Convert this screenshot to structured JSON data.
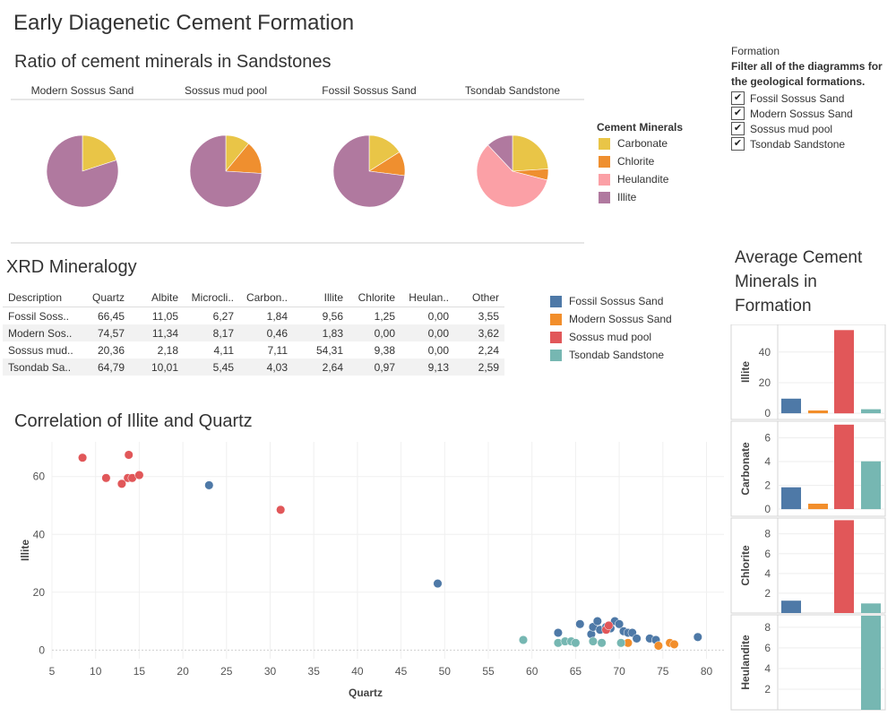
{
  "dashboard": {
    "title": "Early Diagenetic Cement Formation"
  },
  "colors": {
    "carbonate": "#e9c547",
    "chlorite": "#ef8f2f",
    "heulandite": "#fba0a6",
    "illite": "#b0799f",
    "fossil": "#4e79a7",
    "modern": "#f28e2b",
    "mudpool": "#e15759",
    "tsondab": "#76b7b2"
  },
  "pies": {
    "title": "Ratio of cement minerals in Sandstones",
    "minerals": [
      "Carbonate",
      "Chlorite",
      "Heulandite",
      "Illite"
    ],
    "legend_title": "Cement Minerals",
    "items": [
      {
        "name": "Modern Sossus Sand",
        "values": [
          0.2,
          0.0,
          0.0,
          0.8
        ]
      },
      {
        "name": "Sossus mud pool",
        "values": [
          0.11,
          0.15,
          0.0,
          0.74
        ]
      },
      {
        "name": "Fossil Sossus Sand",
        "values": [
          0.16,
          0.11,
          0.0,
          0.73
        ]
      },
      {
        "name": "Tsondab Sandstone",
        "values": [
          0.24,
          0.05,
          0.59,
          0.12
        ]
      }
    ]
  },
  "filter": {
    "title": "Formation",
    "description_line1": "Filter all of the diagramms for",
    "description_line2": "the geological formations.",
    "options": [
      {
        "label": "Fossil Sossus Sand",
        "checked": true,
        "mark": "✔"
      },
      {
        "label": "Modern Sossus Sand",
        "checked": true,
        "mark": "✔"
      },
      {
        "label": "Sossus mud pool",
        "checked": true,
        "mark": "✔"
      },
      {
        "label": "Tsondab Sandstone",
        "checked": true,
        "mark": "✔"
      }
    ]
  },
  "xrd": {
    "title": "XRD Mineralogy",
    "columns": [
      "Description",
      "Quartz",
      "Albite",
      "Microcli..",
      "Carbon..",
      "Illite",
      "Chlorite",
      "Heulan..",
      "Other"
    ],
    "rows": [
      [
        "Fossil Soss..",
        "66,45",
        "11,05",
        "6,27",
        "1,84",
        "9,56",
        "1,25",
        "0,00",
        "3,55"
      ],
      [
        "Modern Sos..",
        "74,57",
        "11,34",
        "8,17",
        "0,46",
        "1,83",
        "0,00",
        "0,00",
        "3,62"
      ],
      [
        "Sossus mud..",
        "20,36",
        "2,18",
        "4,11",
        "7,11",
        "54,31",
        "9,38",
        "0,00",
        "2,24"
      ],
      [
        "Tsondab Sa..",
        "64,79",
        "10,01",
        "5,45",
        "4,03",
        "2,64",
        "0,97",
        "9,13",
        "2,59"
      ]
    ],
    "legend": [
      "Fossil Sossus Sand",
      "Modern Sossus Sand",
      "Sossus mud pool",
      "Tsondab Sandstone"
    ]
  },
  "chart_data": [
    {
      "type": "scatter",
      "title": "Correlation of Illite and Quartz",
      "xlabel": "Quartz",
      "ylabel": "Illite",
      "xlim": [
        5,
        82
      ],
      "ylim": [
        -3,
        72
      ],
      "xticks": [
        5,
        10,
        15,
        20,
        25,
        30,
        35,
        40,
        45,
        50,
        55,
        60,
        65,
        70,
        75,
        80
      ],
      "yticks": [
        0,
        20,
        40,
        60
      ],
      "grid": true,
      "series": [
        {
          "name": "Fossil Sossus Sand",
          "points": [
            [
              23,
              57
            ],
            [
              49.2,
              23
            ],
            [
              63,
              6
            ],
            [
              65.5,
              9
            ],
            [
              66.8,
              5.5
            ],
            [
              67,
              8
            ],
            [
              67.5,
              10
            ],
            [
              67.8,
              7
            ],
            [
              68.5,
              8
            ],
            [
              69,
              7.5
            ],
            [
              69.5,
              10
            ],
            [
              70,
              9
            ],
            [
              70.5,
              6.5
            ],
            [
              71,
              6
            ],
            [
              71.5,
              6
            ],
            [
              72,
              4
            ],
            [
              73.5,
              4
            ],
            [
              74.2,
              3.5
            ],
            [
              79,
              4.5
            ]
          ]
        },
        {
          "name": "Modern Sossus Sand",
          "points": [
            [
              71,
              2.5
            ],
            [
              74.5,
              1.5
            ],
            [
              75.8,
              2.5
            ],
            [
              76.3,
              2
            ]
          ]
        },
        {
          "name": "Sossus mud pool",
          "points": [
            [
              8.5,
              66.5
            ],
            [
              11.2,
              59.5
            ],
            [
              13,
              57.5
            ],
            [
              13.7,
              59.5
            ],
            [
              13.8,
              67.5
            ],
            [
              14.2,
              59.5
            ],
            [
              15,
              60.5
            ],
            [
              31.2,
              48.5
            ],
            [
              68.5,
              7
            ],
            [
              68.8,
              8.5
            ]
          ]
        },
        {
          "name": "Tsondab Sandstone",
          "points": [
            [
              59,
              3.5
            ],
            [
              63,
              2.5
            ],
            [
              63.8,
              3
            ],
            [
              64.5,
              3
            ],
            [
              65,
              2.5
            ],
            [
              67,
              3
            ],
            [
              68,
              2.5
            ],
            [
              70.2,
              2.5
            ]
          ]
        }
      ]
    },
    {
      "type": "bar",
      "title": "Average Cement Minerals in Formation",
      "categories": [
        "Fossil Sossus Sand",
        "Modern Sossus Sand",
        "Sossus mud pool",
        "Tsondab Sandstone"
      ],
      "panels": [
        {
          "ylabel": "Illite",
          "ylim": [
            -4,
            58
          ],
          "ticks": [
            0,
            20,
            40
          ],
          "values": [
            9.56,
            1.83,
            54.31,
            2.64
          ]
        },
        {
          "ylabel": "Carbonate",
          "ylim": [
            -0.6,
            7.4
          ],
          "ticks": [
            0,
            2,
            4,
            6
          ],
          "values": [
            1.84,
            0.46,
            7.11,
            4.03
          ]
        },
        {
          "ylabel": "Chlorite",
          "ylim": [
            0,
            9.6
          ],
          "ticks": [
            2,
            4,
            6,
            8
          ],
          "values": [
            1.25,
            0.0,
            9.38,
            0.97
          ]
        },
        {
          "ylabel": "Heulandite",
          "ylim": [
            0,
            9.2
          ],
          "ticks": [
            2,
            4,
            6,
            8
          ],
          "values": [
            0.0,
            0.0,
            0.0,
            9.13
          ]
        }
      ]
    }
  ]
}
